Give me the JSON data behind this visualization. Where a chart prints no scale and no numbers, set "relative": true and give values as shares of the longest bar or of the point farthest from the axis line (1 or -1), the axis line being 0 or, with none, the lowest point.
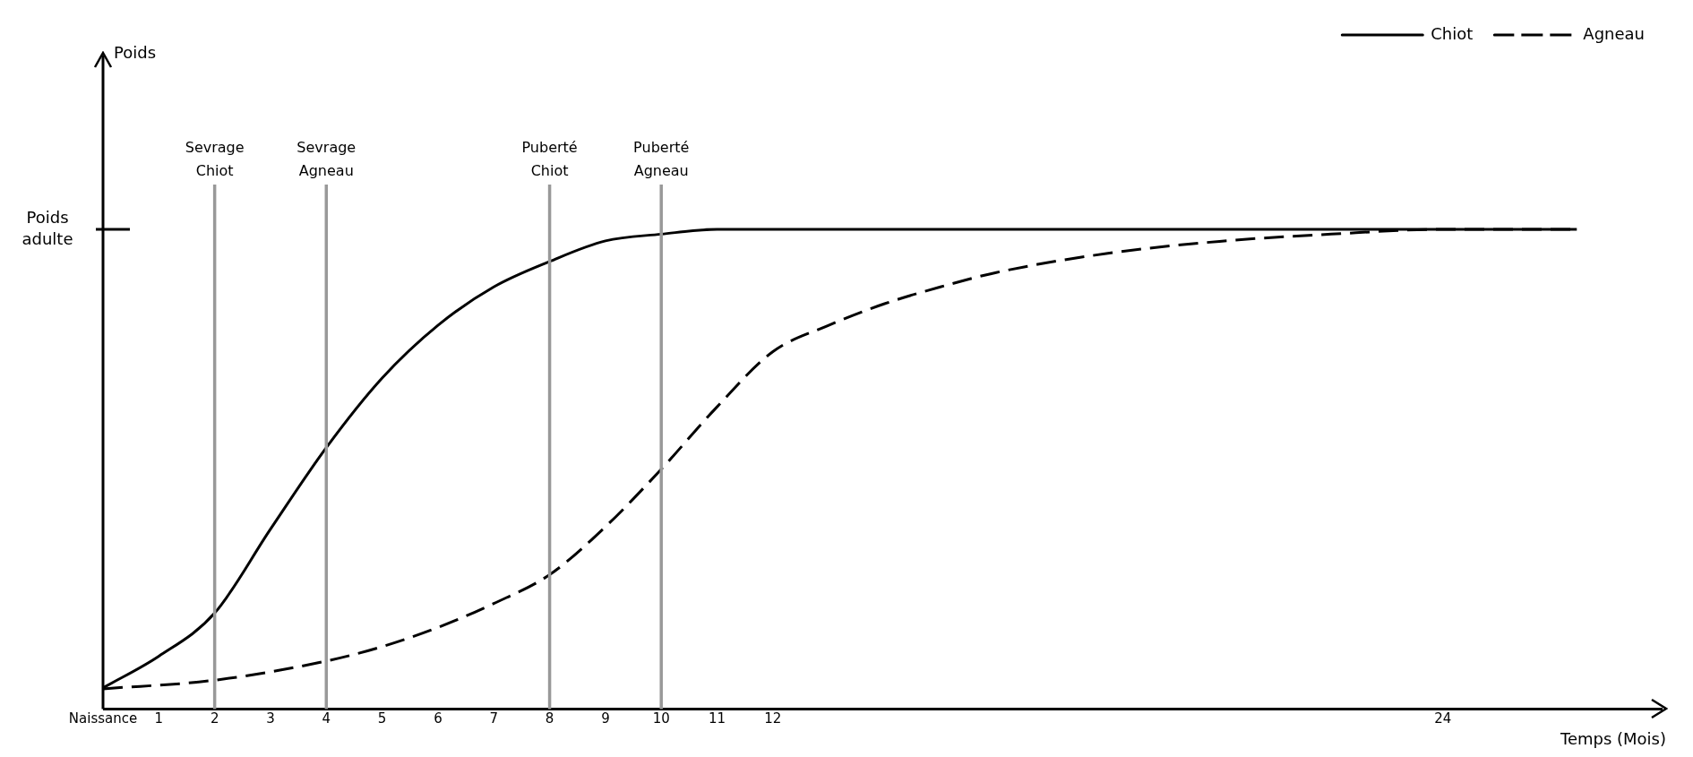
{
  "chart_data": {
    "type": "line",
    "relative": true,
    "xlabel": "Temps (Mois)",
    "xlim": [
      0,
      28
    ],
    "xticks": [
      {
        "value": 0,
        "label": "Naissance"
      },
      1,
      2,
      3,
      4,
      5,
      6,
      7,
      8,
      9,
      10,
      11,
      12,
      24
    ],
    "series": [
      {
        "name": "Chiot",
        "color": "#000000",
        "line_style": "solid",
        "x": [
          0,
          1,
          2,
          3,
          4,
          5,
          6,
          7,
          8,
          9,
          10,
          11,
          12,
          26.4
        ],
        "values": [
          0.044,
          0.11,
          0.2,
          0.375,
          0.545,
          0.69,
          0.8,
          0.88,
          0.933,
          0.976,
          0.99,
          1,
          1,
          1
        ]
      },
      {
        "name": "Agneau",
        "color": "#000000",
        "line_style": "dashed",
        "x": [
          0,
          2,
          4,
          5,
          6,
          7,
          8,
          9,
          10,
          11,
          12,
          13,
          14,
          15,
          16,
          18,
          20,
          22,
          24,
          26.4
        ],
        "values": [
          0.042,
          0.06,
          0.1,
          0.13,
          0.17,
          0.22,
          0.28,
          0.38,
          0.5,
          0.63,
          0.745,
          0.8,
          0.845,
          0.88,
          0.91,
          0.95,
          0.975,
          0.99,
          1,
          1
        ]
      }
    ],
    "ref_lines": [
      {
        "axis": "x",
        "value": 2,
        "label": "Sevrage Chiot",
        "color": "#999999"
      },
      {
        "axis": "x",
        "value": 4,
        "label": "Sevrage Agneau",
        "color": "#999999"
      },
      {
        "axis": "x",
        "value": 8,
        "label": "Puberté Chiot",
        "color": "#999999"
      },
      {
        "axis": "x",
        "value": 10,
        "label": "Puberté Agneau",
        "color": "#999999"
      }
    ],
    "annotations": [
      "Poids adulte",
      "Poids"
    ],
    "legend": "top right",
    "marker": "none",
    "grid": false
  }
}
